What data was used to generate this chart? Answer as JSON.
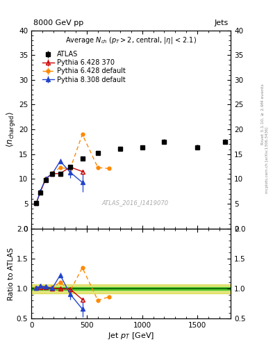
{
  "title_top": "8000 GeV pp",
  "title_right": "Jets",
  "watermark": "ATLAS_2016_I1419070",
  "rivet_label": "Rivet 3.1.10, ≥ 2.9M events",
  "arxiv_label": "mcplots.cern.ch [arXiv:1306.3436]",
  "xlabel": "Jet $p_T$ [GeV]",
  "ylabel_main": "$\\langle n_\\mathrm{charged} \\rangle$",
  "ylabel_ratio": "Ratio to ATLAS",
  "ylim_main": [
    0,
    40
  ],
  "ylim_ratio": [
    0.5,
    2.0
  ],
  "xlim": [
    0,
    1800
  ],
  "atlas_x": [
    45,
    80,
    130,
    190,
    260,
    350,
    460,
    600,
    800,
    1000,
    1200,
    1500,
    1750
  ],
  "atlas_y": [
    5.1,
    7.2,
    9.8,
    11.0,
    11.1,
    12.5,
    14.1,
    15.3,
    16.1,
    16.3,
    17.5,
    16.4,
    17.5
  ],
  "atlas_yerr": [
    0.2,
    0.2,
    0.3,
    0.3,
    0.4,
    0.4,
    0.4,
    0.4,
    0.4,
    0.4,
    0.5,
    0.5,
    0.5
  ],
  "py6_370_x": [
    45,
    80,
    130,
    190,
    260,
    350,
    460
  ],
  "py6_370_y": [
    5.15,
    7.35,
    10.05,
    11.05,
    11.1,
    12.4,
    11.5
  ],
  "py6_370_yerr": [
    0.08,
    0.12,
    0.18,
    0.18,
    0.38,
    0.3,
    0.22
  ],
  "py6_def_x": [
    45,
    80,
    130,
    190,
    260,
    350,
    460,
    600,
    700
  ],
  "py6_def_y": [
    5.15,
    7.4,
    10.0,
    11.2,
    12.3,
    12.0,
    19.0,
    12.3,
    12.1
  ],
  "py6_def_yerr": [
    0.08,
    0.12,
    0.18,
    0.18,
    0.18,
    0.18,
    0.22,
    0.18,
    0.18
  ],
  "py8_def_x": [
    45,
    80,
    130,
    190,
    260,
    350,
    460
  ],
  "py8_def_y": [
    5.15,
    7.5,
    10.1,
    11.1,
    13.6,
    11.35,
    9.3
  ],
  "py8_def_yerr": [
    0.08,
    0.12,
    0.18,
    0.18,
    0.45,
    1.1,
    1.9
  ],
  "ratio_py6_370_x": [
    45,
    80,
    130,
    190,
    260,
    350,
    460
  ],
  "ratio_py6_370_y": [
    1.01,
    1.02,
    1.025,
    1.005,
    0.995,
    0.992,
    0.818
  ],
  "ratio_py6_370_yerr": [
    0.015,
    0.015,
    0.018,
    0.016,
    0.034,
    0.024,
    0.019
  ],
  "ratio_py6_def_x": [
    45,
    80,
    130,
    190,
    260,
    350,
    460,
    600,
    700
  ],
  "ratio_py6_def_y": [
    1.01,
    1.028,
    1.02,
    1.018,
    1.108,
    0.96,
    1.348,
    0.803,
    0.863
  ],
  "ratio_py6_def_yerr": [
    0.015,
    0.015,
    0.018,
    0.016,
    0.016,
    0.014,
    0.022,
    0.016,
    0.016
  ],
  "ratio_py8_def_x": [
    45,
    80,
    130,
    190,
    260,
    350,
    460
  ],
  "ratio_py8_def_y": [
    1.01,
    1.042,
    1.031,
    1.009,
    1.225,
    0.908,
    0.66
  ],
  "ratio_py8_def_yerr": [
    0.015,
    0.015,
    0.018,
    0.016,
    0.04,
    0.088,
    0.136
  ],
  "ratio_green_lo": 0.972,
  "ratio_green_hi": 1.028,
  "ratio_yellow_lo": 0.922,
  "ratio_yellow_hi": 1.065,
  "color_atlas": "#000000",
  "color_py6_370": "#cc0000",
  "color_py6_def": "#ff8800",
  "color_py8_def": "#2244cc",
  "color_green": "#00bb00",
  "color_yellow": "#cccc00",
  "bg": "#ffffff",
  "yticks_main": [
    0,
    5,
    10,
    15,
    20,
    25,
    30,
    35,
    40
  ],
  "yticks_ratio": [
    0.5,
    1.0,
    1.5,
    2.0
  ],
  "xticks": [
    0,
    500,
    1000,
    1500
  ]
}
